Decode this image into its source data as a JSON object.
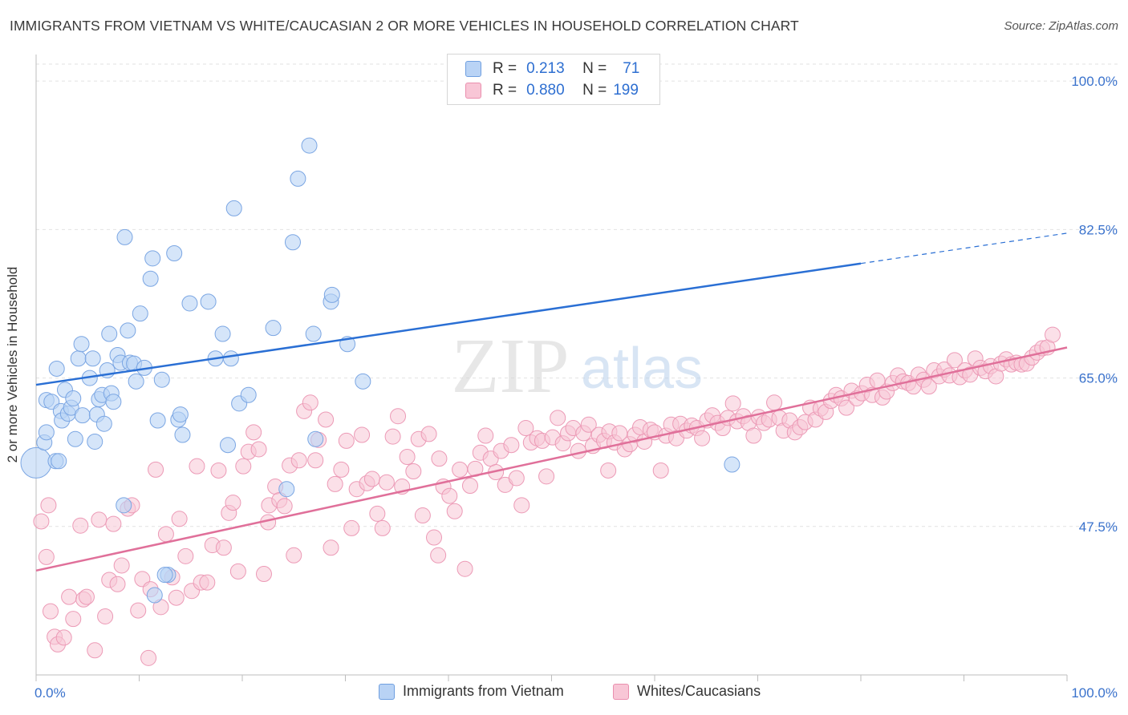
{
  "title": "IMMIGRANTS FROM VIETNAM VS WHITE/CAUCASIAN 2 OR MORE VEHICLES IN HOUSEHOLD CORRELATION CHART",
  "source": "Source: ZipAtlas.com",
  "watermark": {
    "zip": "ZIP",
    "atlas": "atlas"
  },
  "legend": {
    "rows": [
      {
        "r_label": "R =",
        "r_value": "0.213",
        "n_label": "N =",
        "n_value": "71",
        "fill": "#b9d3f5",
        "stroke": "#6f9fe0"
      },
      {
        "r_label": "R =",
        "r_value": "0.880",
        "n_label": "N =",
        "n_value": "199",
        "fill": "#f8c6d6",
        "stroke": "#ea8fae"
      }
    ]
  },
  "bottom_legend": [
    "Immigrants from Vietnam",
    "Whites/Caucasians"
  ],
  "chart_data": {
    "type": "scatter",
    "title": "IMMIGRANTS FROM VIETNAM VS WHITE/CAUCASIAN 2 OR MORE VEHICLES IN HOUSEHOLD CORRELATION CHART",
    "xlabel": "",
    "ylabel": "2 or more Vehicles in Household",
    "xlim": [
      0,
      100
    ],
    "ylim": [
      30,
      102
    ],
    "x_tick_labels": [
      "0.0%",
      "100.0%"
    ],
    "y_ticks": [
      47.5,
      65.0,
      82.5,
      100.0
    ],
    "y_tick_labels": [
      "47.5%",
      "65.0%",
      "82.5%",
      "100.0%"
    ],
    "grid": true,
    "legend_position": "top-center",
    "colors": {
      "blue_fill": "#b9d3f5",
      "blue_stroke": "#7ba6e3",
      "blue_line": "#2a6fd4",
      "pink_fill": "#f8c6d6",
      "pink_stroke": "#ec9ab6",
      "pink_line": "#e0709a",
      "tick_label": "#3a72cc",
      "grid": "#e2e2e2"
    },
    "series": [
      {
        "name": "Immigrants from Vietnam",
        "trend": {
          "x0": 0,
          "y0": 64.2,
          "x1": 80,
          "y1": 78.5,
          "dashed_to_x": 100
        },
        "points": [
          [
            0,
            55.0,
            "big"
          ],
          [
            0.8,
            57.4
          ],
          [
            1.0,
            58.6
          ],
          [
            1.0,
            62.4
          ],
          [
            1.5,
            62.2
          ],
          [
            1.9,
            55.2
          ],
          [
            2.0,
            66.1
          ],
          [
            2.4,
            61.1
          ],
          [
            2.5,
            60.0
          ],
          [
            2.8,
            63.6
          ],
          [
            3.1,
            60.8
          ],
          [
            3.4,
            61.5
          ],
          [
            3.6,
            62.6
          ],
          [
            3.8,
            57.8
          ],
          [
            4.1,
            67.3
          ],
          [
            4.4,
            69.0
          ],
          [
            4.5,
            60.6
          ],
          [
            5.2,
            65.0
          ],
          [
            5.5,
            67.3
          ],
          [
            5.7,
            57.5
          ],
          [
            5.9,
            60.7
          ],
          [
            6.1,
            62.5
          ],
          [
            6.4,
            63.0
          ],
          [
            6.6,
            59.6
          ],
          [
            6.9,
            65.9
          ],
          [
            7.1,
            70.2
          ],
          [
            7.3,
            63.2
          ],
          [
            7.5,
            62.2
          ],
          [
            7.9,
            67.7
          ],
          [
            8.2,
            66.8
          ],
          [
            8.6,
            81.6
          ],
          [
            8.9,
            70.6
          ],
          [
            9.1,
            66.8
          ],
          [
            9.5,
            66.7
          ],
          [
            9.7,
            64.6
          ],
          [
            10.1,
            72.6
          ],
          [
            10.5,
            66.2
          ],
          [
            11.1,
            76.7
          ],
          [
            11.3,
            79.1
          ],
          [
            11.8,
            60.0
          ],
          [
            12.2,
            64.8
          ],
          [
            12.8,
            41.8
          ],
          [
            13.4,
            79.7
          ],
          [
            13.8,
            60.1
          ],
          [
            14.0,
            60.7
          ],
          [
            14.2,
            58.3
          ],
          [
            14.9,
            73.8
          ],
          [
            16.7,
            74.0
          ],
          [
            17.4,
            67.3
          ],
          [
            18.1,
            70.2
          ],
          [
            18.6,
            57.1
          ],
          [
            18.9,
            67.3
          ],
          [
            19.2,
            85.0
          ],
          [
            19.7,
            62.0
          ],
          [
            20.6,
            63.0
          ],
          [
            23.0,
            70.9
          ],
          [
            24.3,
            51.9
          ],
          [
            24.9,
            81.0
          ],
          [
            25.4,
            88.5
          ],
          [
            26.5,
            92.4
          ],
          [
            26.9,
            70.2
          ],
          [
            27.1,
            57.8
          ],
          [
            28.6,
            74.0
          ],
          [
            28.7,
            74.8
          ],
          [
            30.2,
            69.0
          ],
          [
            31.7,
            64.6
          ],
          [
            67.5,
            54.8
          ],
          [
            8.5,
            50.0
          ],
          [
            11.5,
            39.4
          ],
          [
            12.5,
            41.8
          ],
          [
            2.2,
            55.2
          ]
        ]
      },
      {
        "name": "Whites/Caucasians",
        "trend": {
          "x0": 0,
          "y0": 42.3,
          "x1": 100,
          "y1": 68.6
        },
        "points": [
          [
            0.5,
            48.1
          ],
          [
            1.0,
            43.9
          ],
          [
            1.4,
            37.5
          ],
          [
            1.8,
            34.5
          ],
          [
            2.1,
            33.6
          ],
          [
            2.7,
            34.4
          ],
          [
            3.2,
            39.2
          ],
          [
            3.6,
            36.6
          ],
          [
            4.3,
            47.6
          ],
          [
            4.6,
            38.9
          ],
          [
            4.9,
            39.2
          ],
          [
            5.7,
            32.9
          ],
          [
            6.1,
            48.3
          ],
          [
            6.7,
            36.9
          ],
          [
            7.1,
            41.2
          ],
          [
            7.5,
            47.8
          ],
          [
            7.9,
            40.7
          ],
          [
            8.3,
            42.9
          ],
          [
            8.9,
            49.6
          ],
          [
            9.3,
            50.0
          ],
          [
            9.9,
            37.6
          ],
          [
            10.3,
            41.3
          ],
          [
            10.9,
            32.0
          ],
          [
            11.1,
            40.1
          ],
          [
            11.6,
            54.2
          ],
          [
            12.1,
            38.0
          ],
          [
            12.6,
            46.6
          ],
          [
            13.2,
            41.5
          ],
          [
            13.6,
            39.1
          ],
          [
            13.9,
            48.4
          ],
          [
            14.5,
            44.0
          ],
          [
            15.1,
            39.9
          ],
          [
            15.6,
            54.6
          ],
          [
            16.0,
            40.9
          ],
          [
            16.6,
            40.9
          ],
          [
            17.1,
            45.3
          ],
          [
            17.7,
            54.1
          ],
          [
            18.2,
            45.0
          ],
          [
            18.7,
            49.1
          ],
          [
            19.1,
            50.3
          ],
          [
            19.6,
            42.2
          ],
          [
            20.1,
            54.6
          ],
          [
            20.6,
            56.3
          ],
          [
            21.1,
            58.6
          ],
          [
            21.6,
            56.6
          ],
          [
            22.1,
            41.9
          ],
          [
            22.6,
            50.0
          ],
          [
            23.2,
            52.2
          ],
          [
            23.6,
            50.6
          ],
          [
            24.1,
            49.9
          ],
          [
            24.6,
            54.7
          ],
          [
            25.0,
            44.1
          ],
          [
            25.5,
            55.3
          ],
          [
            26.0,
            61.1
          ],
          [
            26.6,
            62.1
          ],
          [
            27.1,
            55.3
          ],
          [
            27.4,
            57.7
          ],
          [
            28.1,
            60.1
          ],
          [
            28.6,
            45.0
          ],
          [
            29.0,
            52.5
          ],
          [
            29.6,
            54.2
          ],
          [
            30.1,
            57.6
          ],
          [
            30.6,
            47.3
          ],
          [
            31.1,
            51.9
          ],
          [
            31.6,
            58.3
          ],
          [
            32.1,
            52.6
          ],
          [
            32.6,
            53.1
          ],
          [
            33.1,
            49.0
          ],
          [
            33.6,
            47.3
          ],
          [
            34.0,
            52.7
          ],
          [
            34.6,
            58.1
          ],
          [
            35.1,
            60.5
          ],
          [
            35.5,
            52.2
          ],
          [
            36.0,
            55.7
          ],
          [
            36.6,
            54.0
          ],
          [
            37.1,
            57.8
          ],
          [
            37.5,
            48.8
          ],
          [
            38.1,
            58.4
          ],
          [
            38.6,
            46.2
          ],
          [
            39.1,
            55.5
          ],
          [
            39.5,
            52.2
          ],
          [
            40.1,
            51.1
          ],
          [
            40.6,
            49.3
          ],
          [
            41.1,
            54.2
          ],
          [
            41.6,
            42.5
          ],
          [
            42.1,
            52.3
          ],
          [
            42.6,
            54.3
          ],
          [
            43.1,
            56.2
          ],
          [
            43.6,
            58.2
          ],
          [
            44.1,
            55.5
          ],
          [
            44.6,
            53.9
          ],
          [
            45.1,
            56.4
          ],
          [
            45.5,
            52.4
          ],
          [
            46.1,
            57.1
          ],
          [
            46.6,
            53.2
          ],
          [
            47.1,
            50.0
          ],
          [
            47.5,
            59.1
          ],
          [
            48.0,
            57.4
          ],
          [
            48.6,
            57.9
          ],
          [
            49.1,
            57.6
          ],
          [
            49.5,
            53.4
          ],
          [
            50.1,
            58.0
          ],
          [
            50.6,
            60.3
          ],
          [
            51.1,
            57.3
          ],
          [
            51.6,
            58.5
          ],
          [
            52.1,
            59.1
          ],
          [
            52.6,
            56.4
          ],
          [
            53.1,
            58.5
          ],
          [
            53.6,
            59.5
          ],
          [
            54.0,
            57.0
          ],
          [
            54.6,
            58.3
          ],
          [
            55.1,
            57.6
          ],
          [
            55.6,
            58.7
          ],
          [
            56.1,
            57.4
          ],
          [
            56.6,
            58.5
          ],
          [
            57.1,
            56.6
          ],
          [
            57.6,
            57.2
          ],
          [
            58.1,
            58.3
          ],
          [
            58.6,
            59.2
          ],
          [
            59.0,
            57.5
          ],
          [
            59.6,
            58.9
          ],
          [
            60.0,
            58.6
          ],
          [
            60.6,
            54.1
          ],
          [
            61.1,
            58.2
          ],
          [
            61.6,
            59.5
          ],
          [
            62.1,
            57.9
          ],
          [
            62.5,
            59.6
          ],
          [
            63.1,
            58.8
          ],
          [
            63.6,
            59.4
          ],
          [
            64.1,
            59.1
          ],
          [
            64.6,
            57.9
          ],
          [
            65.1,
            60.0
          ],
          [
            65.6,
            60.6
          ],
          [
            66.1,
            59.7
          ],
          [
            66.6,
            59.1
          ],
          [
            67.1,
            60.3
          ],
          [
            67.6,
            62.0
          ],
          [
            68.0,
            59.9
          ],
          [
            68.6,
            60.5
          ],
          [
            69.1,
            59.7
          ],
          [
            69.6,
            58.2
          ],
          [
            70.1,
            60.4
          ],
          [
            70.6,
            59.7
          ],
          [
            71.1,
            60.1
          ],
          [
            71.6,
            62.1
          ],
          [
            72.1,
            60.3
          ],
          [
            72.5,
            58.8
          ],
          [
            73.1,
            60.0
          ],
          [
            73.6,
            58.6
          ],
          [
            74.1,
            59.2
          ],
          [
            74.6,
            59.8
          ],
          [
            75.1,
            61.5
          ],
          [
            75.6,
            60.1
          ],
          [
            76.1,
            61.4
          ],
          [
            76.6,
            61.0
          ],
          [
            77.1,
            62.3
          ],
          [
            77.6,
            63.0
          ],
          [
            78.1,
            62.6
          ],
          [
            78.6,
            61.5
          ],
          [
            79.1,
            63.5
          ],
          [
            79.6,
            62.6
          ],
          [
            80.1,
            63.2
          ],
          [
            80.6,
            64.2
          ],
          [
            81.1,
            63.0
          ],
          [
            81.6,
            64.7
          ],
          [
            82.1,
            62.7
          ],
          [
            82.5,
            63.4
          ],
          [
            83.1,
            64.4
          ],
          [
            83.6,
            65.3
          ],
          [
            84.1,
            64.6
          ],
          [
            84.6,
            64.4
          ],
          [
            85.1,
            64.0
          ],
          [
            85.6,
            65.4
          ],
          [
            86.1,
            64.8
          ],
          [
            86.6,
            64.0
          ],
          [
            87.1,
            65.9
          ],
          [
            87.6,
            65.2
          ],
          [
            88.1,
            66.0
          ],
          [
            88.6,
            65.3
          ],
          [
            89.1,
            67.1
          ],
          [
            89.6,
            65.1
          ],
          [
            90.1,
            65.9
          ],
          [
            90.6,
            65.4
          ],
          [
            91.1,
            67.3
          ],
          [
            91.6,
            66.2
          ],
          [
            92.1,
            65.8
          ],
          [
            92.6,
            66.4
          ],
          [
            93.1,
            65.2
          ],
          [
            93.6,
            66.7
          ],
          [
            94.1,
            67.2
          ],
          [
            94.6,
            66.6
          ],
          [
            95.1,
            66.8
          ],
          [
            95.6,
            66.6
          ],
          [
            96.1,
            66.7
          ],
          [
            96.6,
            67.4
          ],
          [
            97.1,
            68.0
          ],
          [
            97.6,
            68.5
          ],
          [
            98.1,
            68.6
          ],
          [
            98.6,
            70.1
          ],
          [
            55.5,
            54.1
          ],
          [
            1.2,
            50.0
          ],
          [
            22.5,
            48.0
          ],
          [
            39.0,
            44.1
          ]
        ]
      }
    ]
  }
}
